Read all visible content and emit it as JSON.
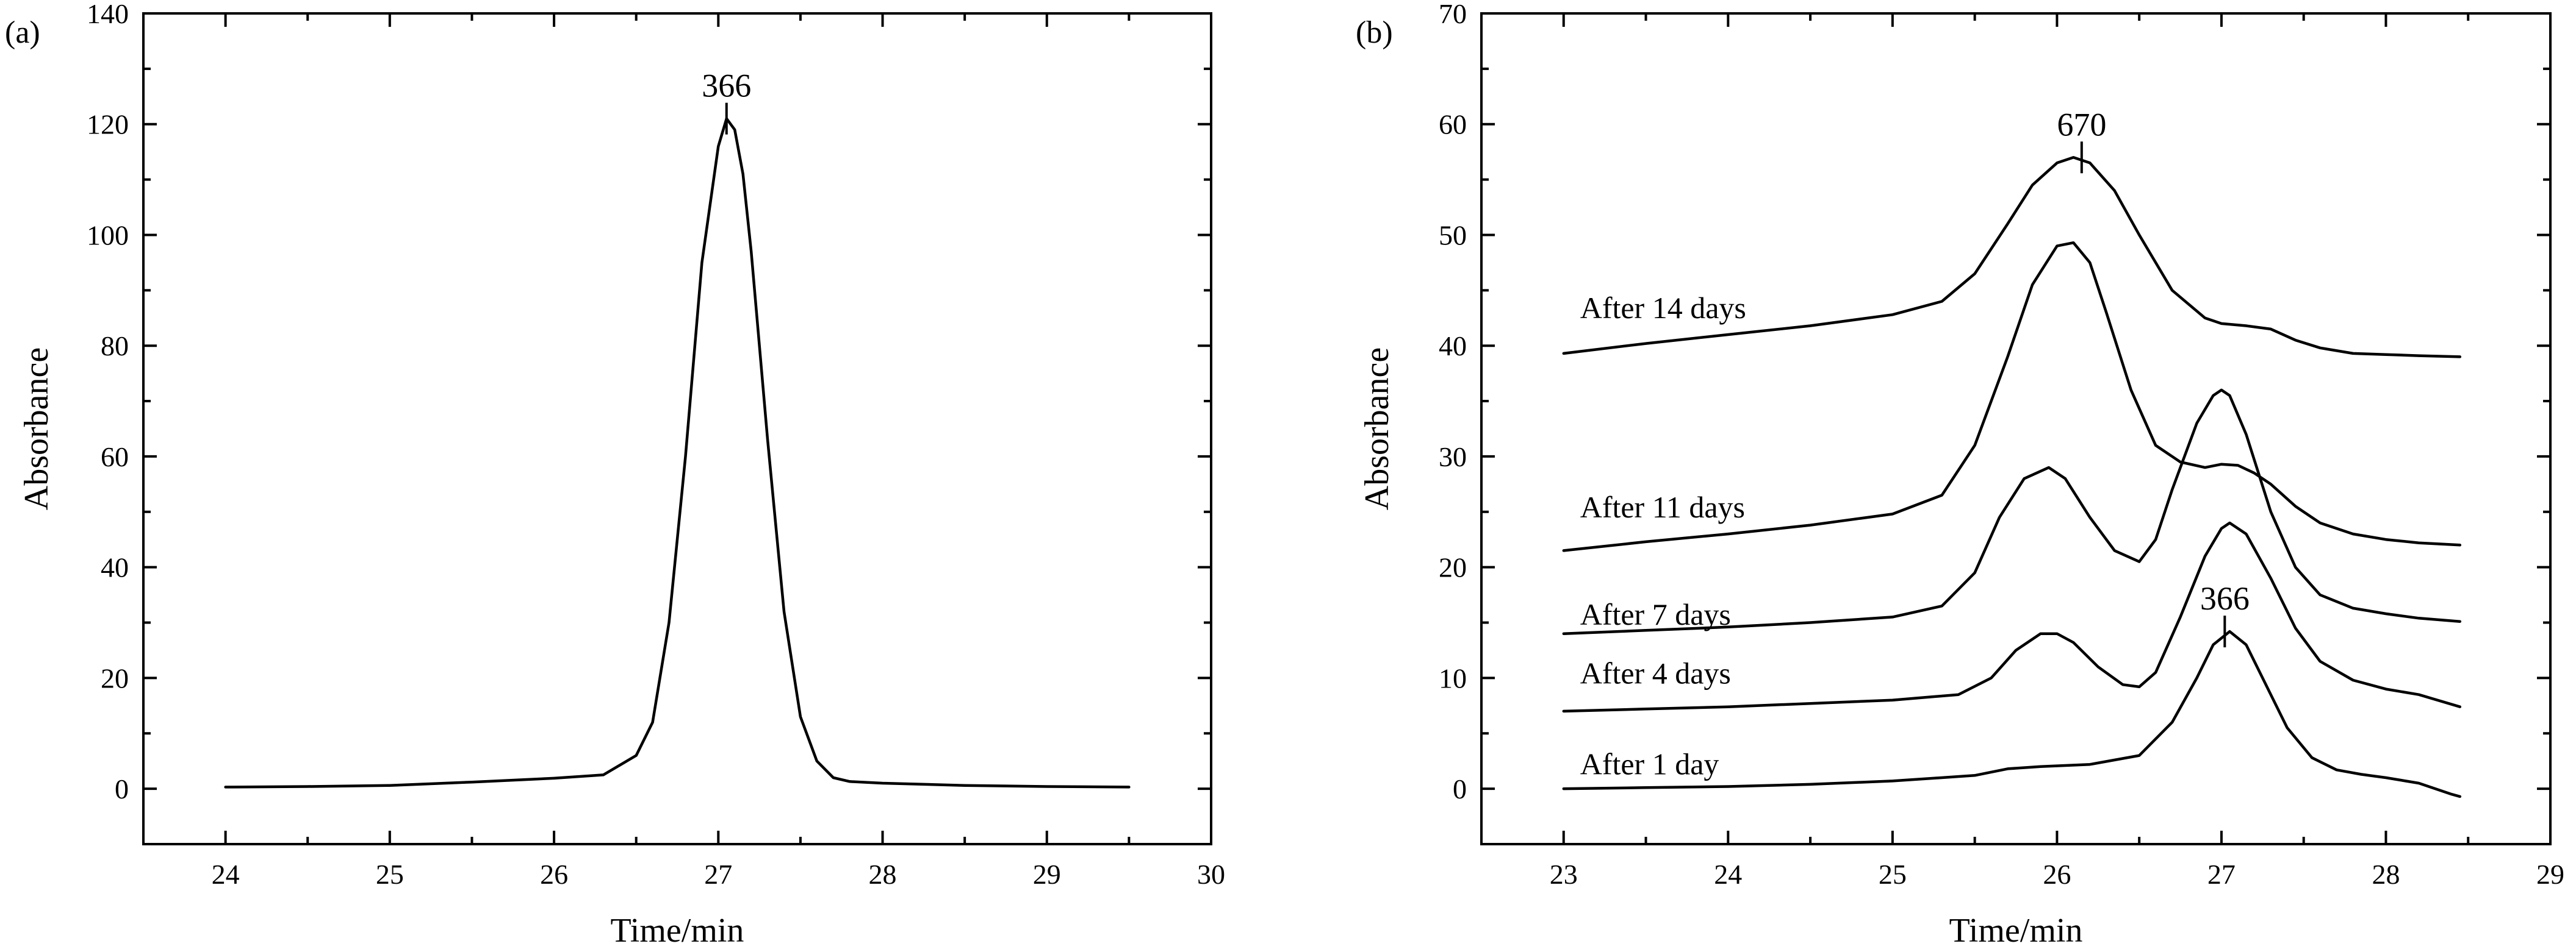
{
  "chart_data": [
    {
      "panel_label": "(a)",
      "type": "line",
      "xlabel": "Time/min",
      "ylabel": "Absorbance",
      "xlim": [
        23.5,
        30
      ],
      "ylim": [
        -10,
        140
      ],
      "xticks": [
        24,
        25,
        26,
        27,
        28,
        29,
        30
      ],
      "yticks": [
        0,
        20,
        40,
        60,
        80,
        100,
        120,
        140
      ],
      "grid": false,
      "series": [
        {
          "x": [
            24.0,
            24.5,
            25.0,
            25.5,
            26.0,
            26.3,
            26.5,
            26.6,
            26.7,
            26.8,
            26.9,
            27.0,
            27.05,
            27.1,
            27.15,
            27.2,
            27.3,
            27.4,
            27.5,
            27.6,
            27.7,
            27.8,
            28.0,
            28.5,
            29.0,
            29.5
          ],
          "y": [
            0.3,
            0.4,
            0.6,
            1.2,
            1.9,
            2.5,
            6,
            12,
            30,
            60,
            95,
            116,
            121,
            119,
            111,
            97,
            63,
            32,
            13,
            5,
            2,
            1.3,
            1.0,
            0.6,
            0.4,
            0.3
          ]
        }
      ],
      "annotations": [
        {
          "text": "366",
          "x": 27.05,
          "y": 121
        }
      ]
    },
    {
      "panel_label": "(b)",
      "type": "line",
      "xlabel": "Time/min",
      "ylabel": "Absorbance",
      "xlim": [
        22.5,
        29
      ],
      "ylim": [
        -5,
        70
      ],
      "xticks": [
        23,
        24,
        25,
        26,
        27,
        28,
        29
      ],
      "yticks": [
        0,
        10,
        20,
        30,
        40,
        50,
        60,
        70
      ],
      "grid": false,
      "series": [
        {
          "name": "After 1 day",
          "label_at": [
            23.1,
            1.3
          ],
          "x": [
            23.0,
            23.5,
            24.0,
            24.5,
            25.0,
            25.5,
            25.7,
            25.9,
            26.2,
            26.5,
            26.7,
            26.85,
            26.95,
            27.05,
            27.15,
            27.25,
            27.4,
            27.55,
            27.7,
            27.85,
            28.0,
            28.2,
            28.4,
            28.45
          ],
          "y": [
            0.0,
            0.1,
            0.2,
            0.4,
            0.7,
            1.2,
            1.8,
            2.0,
            2.2,
            3.0,
            6.0,
            10.0,
            13.0,
            14.2,
            13.0,
            10.0,
            5.5,
            2.8,
            1.7,
            1.3,
            1.0,
            0.5,
            -0.5,
            -0.7
          ]
        },
        {
          "name": "After 4 days",
          "label_at": [
            23.1,
            9.5
          ],
          "x": [
            23.0,
            23.5,
            24.0,
            24.5,
            25.0,
            25.4,
            25.6,
            25.75,
            25.9,
            26.0,
            26.1,
            26.25,
            26.4,
            26.5,
            26.6,
            26.75,
            26.9,
            27.0,
            27.05,
            27.15,
            27.3,
            27.45,
            27.6,
            27.8,
            28.0,
            28.2,
            28.45
          ],
          "y": [
            7.0,
            7.2,
            7.4,
            7.7,
            8.0,
            8.5,
            10.0,
            12.5,
            14.0,
            14.0,
            13.2,
            11.0,
            9.4,
            9.2,
            10.5,
            15.5,
            21.0,
            23.5,
            24.0,
            23.0,
            19.0,
            14.5,
            11.5,
            9.8,
            9.0,
            8.5,
            7.4
          ]
        },
        {
          "name": "After 7 days",
          "label_at": [
            23.1,
            14.8
          ],
          "x": [
            23.0,
            23.5,
            24.0,
            24.5,
            25.0,
            25.3,
            25.5,
            25.65,
            25.8,
            25.95,
            26.05,
            26.2,
            26.35,
            26.5,
            26.6,
            26.7,
            26.85,
            26.95,
            27.0,
            27.05,
            27.15,
            27.3,
            27.45,
            27.6,
            27.8,
            28.0,
            28.2,
            28.45
          ],
          "y": [
            14.0,
            14.3,
            14.6,
            15.0,
            15.5,
            16.5,
            19.5,
            24.5,
            28.0,
            29.0,
            28.0,
            24.5,
            21.5,
            20.5,
            22.5,
            27.0,
            33.0,
            35.5,
            36.0,
            35.5,
            32.0,
            25.0,
            20.0,
            17.5,
            16.3,
            15.8,
            15.4,
            15.1
          ]
        },
        {
          "name": "After 11 days",
          "label_at": [
            23.1,
            24.5
          ],
          "x": [
            23.0,
            23.5,
            24.0,
            24.5,
            25.0,
            25.3,
            25.5,
            25.7,
            25.85,
            26.0,
            26.1,
            26.2,
            26.3,
            26.45,
            26.6,
            26.75,
            26.9,
            27.0,
            27.1,
            27.2,
            27.3,
            27.45,
            27.6,
            27.8,
            28.0,
            28.2,
            28.45
          ],
          "y": [
            21.5,
            22.3,
            23.0,
            23.8,
            24.8,
            26.5,
            31.0,
            39.0,
            45.5,
            49.0,
            49.3,
            47.5,
            43.0,
            36.0,
            31.0,
            29.5,
            29.0,
            29.3,
            29.2,
            28.5,
            27.5,
            25.5,
            24.0,
            23.0,
            22.5,
            22.2,
            22.0
          ]
        },
        {
          "name": "After 14 days",
          "label_at": [
            23.1,
            42.5
          ],
          "x": [
            23.0,
            23.5,
            24.0,
            24.5,
            25.0,
            25.3,
            25.5,
            25.7,
            25.85,
            26.0,
            26.1,
            26.2,
            26.35,
            26.5,
            26.7,
            26.9,
            27.0,
            27.15,
            27.3,
            27.45,
            27.6,
            27.8,
            28.0,
            28.2,
            28.45
          ],
          "y": [
            39.3,
            40.2,
            41.0,
            41.8,
            42.8,
            44.0,
            46.5,
            51.0,
            54.5,
            56.5,
            57.0,
            56.5,
            54.0,
            50.0,
            45.0,
            42.5,
            42.0,
            41.8,
            41.5,
            40.5,
            39.8,
            39.3,
            39.2,
            39.1,
            39.0
          ]
        }
      ],
      "annotations": [
        {
          "text": "670",
          "x": 26.15,
          "y": 57
        },
        {
          "text": "366",
          "x": 27.02,
          "y": 14.2
        }
      ]
    }
  ]
}
